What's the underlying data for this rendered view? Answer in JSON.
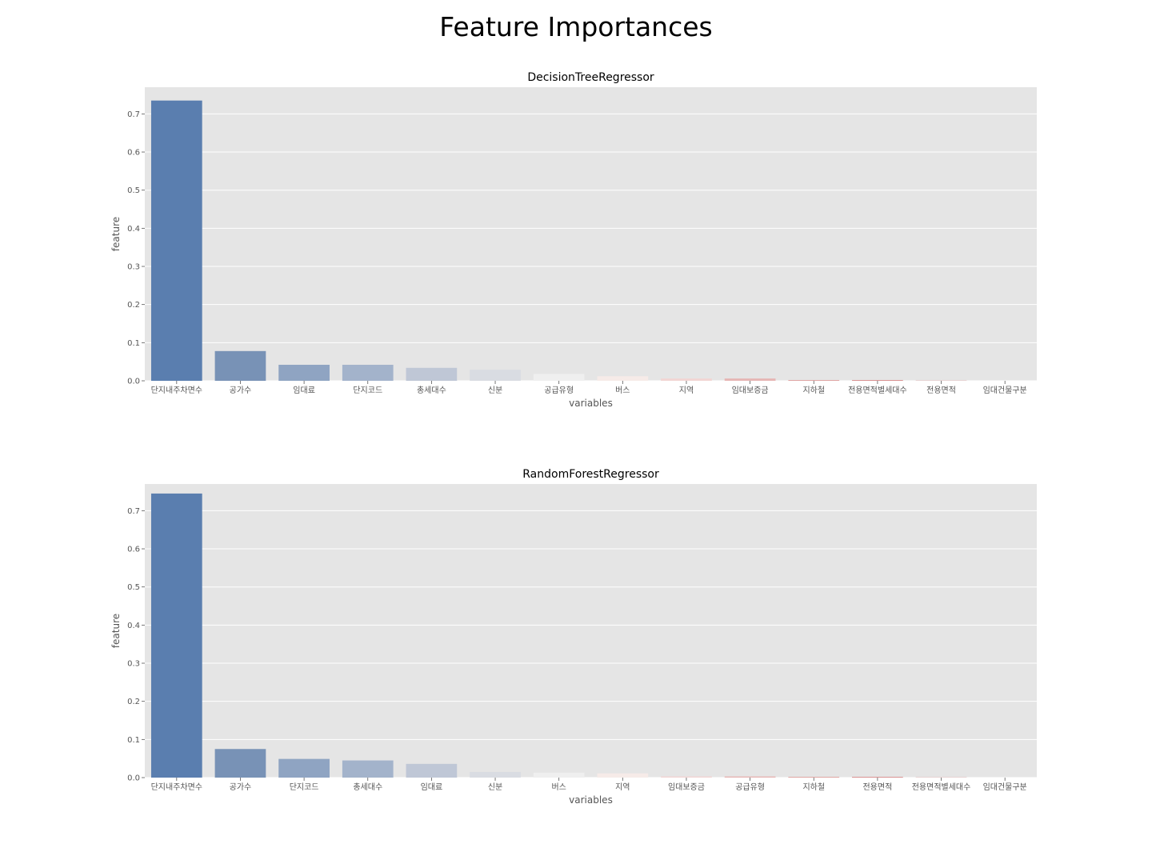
{
  "figure": {
    "title": "Feature Importances"
  },
  "chart_data": [
    {
      "type": "bar",
      "title": "DecisionTreeRegressor",
      "xlabel": "variables",
      "ylabel": "feature",
      "ylim": [
        0,
        0.77
      ],
      "yticks": [
        "0.0",
        "0.1",
        "0.2",
        "0.3",
        "0.4",
        "0.5",
        "0.6",
        "0.7"
      ],
      "grid": true,
      "categories": [
        "단지내주차면수",
        "공가수",
        "임대료",
        "단지코드",
        "총세대수",
        "신분",
        "공급유형",
        "버스",
        "지역",
        "임대보증금",
        "지하철",
        "전용면적별세대수",
        "전용면적",
        "임대건물구분"
      ],
      "values": [
        0.735,
        0.078,
        0.042,
        0.042,
        0.034,
        0.029,
        0.018,
        0.012,
        0.006,
        0.006,
        0.002,
        0.002,
        0.0005,
        0.0
      ],
      "colors": [
        "#5a7eaf",
        "#7892b6",
        "#8fa4c2",
        "#a3b3cb",
        "#bfc7d6",
        "#d9dce2",
        "#efefef",
        "#f6ebe8",
        "#f2d5d3",
        "#e6b6b4",
        "#dfa2a0",
        "#d88e8e",
        "#d17c7c",
        "#c45a5a"
      ]
    },
    {
      "type": "bar",
      "title": "RandomForestRegressor",
      "xlabel": "variables",
      "ylabel": "feature",
      "ylim": [
        0,
        0.77
      ],
      "yticks": [
        "0.0",
        "0.1",
        "0.2",
        "0.3",
        "0.4",
        "0.5",
        "0.6",
        "0.7"
      ],
      "grid": true,
      "categories": [
        "단지내주차면수",
        "공가수",
        "단지코드",
        "총세대수",
        "임대료",
        "신분",
        "버스",
        "지역",
        "임대보증금",
        "공급유형",
        "지하철",
        "전용면적",
        "전용면적별세대수",
        "임대건물구분"
      ],
      "values": [
        0.745,
        0.075,
        0.049,
        0.045,
        0.036,
        0.015,
        0.013,
        0.011,
        0.003,
        0.003,
        0.002,
        0.002,
        0.0005,
        0.0
      ],
      "colors": [
        "#5a7eaf",
        "#7892b6",
        "#8fa4c2",
        "#a3b3cb",
        "#bfc7d6",
        "#d9dce2",
        "#efefef",
        "#f6ebe8",
        "#f2d5d3",
        "#e6b6b4",
        "#dfa2a0",
        "#d88e8e",
        "#d17c7c",
        "#c45a5a"
      ]
    }
  ]
}
